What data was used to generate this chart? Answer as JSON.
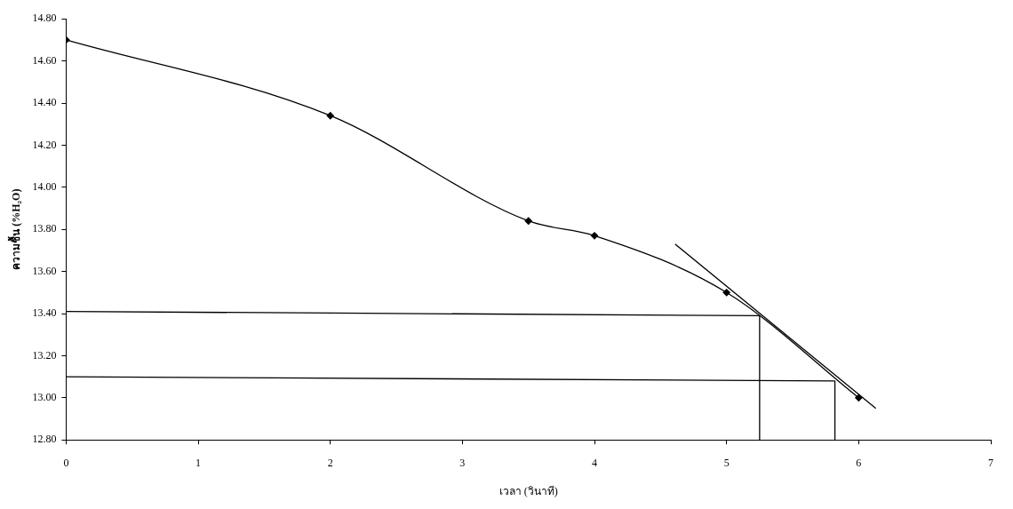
{
  "chart_data": {
    "type": "line",
    "xlabel": "เวลา (วินาที)",
    "ylabel": "ความชื้น (%H₂O)",
    "xlim": [
      0,
      7
    ],
    "xticks": [
      0,
      1,
      2,
      3,
      4,
      5,
      6,
      7
    ],
    "ylim": [
      12.8,
      14.8
    ],
    "yticks": [
      {
        "value": 12.8,
        "label": "12.80"
      },
      {
        "value": 13.0,
        "label": "13.00"
      },
      {
        "value": 13.2,
        "label": "13.20"
      },
      {
        "value": 13.4,
        "label": "13.40"
      },
      {
        "value": 13.6,
        "label": "13.60"
      },
      {
        "value": 13.8,
        "label": "13.80"
      },
      {
        "value": 14.0,
        "label": "14.00"
      },
      {
        "value": 14.2,
        "label": "14.20"
      },
      {
        "value": 14.4,
        "label": "14.40"
      },
      {
        "value": 14.6,
        "label": "14.60"
      },
      {
        "value": 14.8,
        "label": "14.80"
      }
    ],
    "grid": false,
    "legend": false,
    "series": [
      {
        "color": "#000000",
        "marker": "diamond",
        "x": [
          0,
          2,
          3.5,
          4,
          5,
          6
        ],
        "values": [
          14.7,
          14.34,
          13.84,
          13.77,
          13.5,
          13.0
        ]
      },
      {
        "color": "#000000",
        "marker": "none",
        "x": [
          4.61,
          6.13
        ],
        "values": [
          13.73,
          12.95
        ]
      },
      {
        "color": "#000000",
        "marker": "none",
        "x": [
          0,
          5.25
        ],
        "values": [
          13.41,
          13.39
        ]
      },
      {
        "color": "#000000",
        "marker": "none",
        "x": [
          0,
          5.82
        ],
        "values": [
          13.1,
          13.08
        ]
      },
      {
        "color": "#000000",
        "marker": "none",
        "x": [
          5.25,
          5.25
        ],
        "values": [
          12.8,
          13.39
        ]
      },
      {
        "color": "#000000",
        "marker": "none",
        "x": [
          5.82,
          5.82
        ],
        "values": [
          12.8,
          13.08
        ]
      }
    ]
  }
}
